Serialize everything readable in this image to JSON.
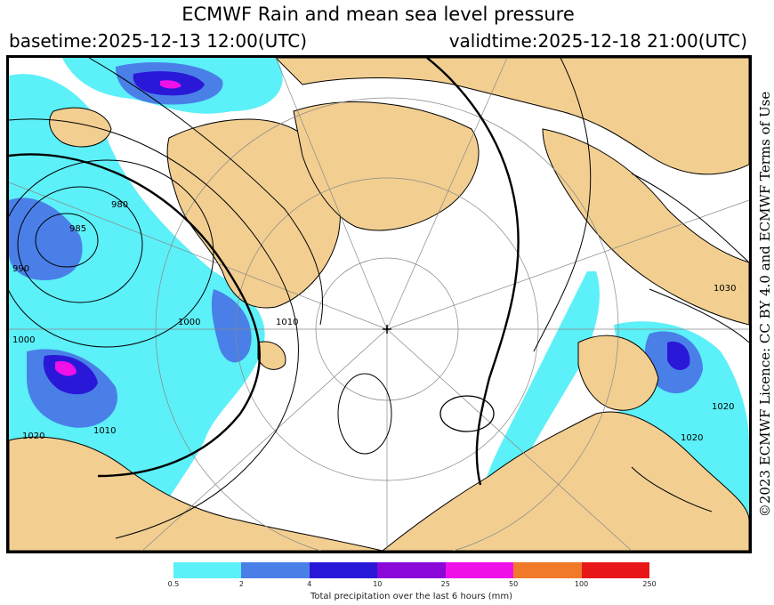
{
  "header": {
    "title": "ECMWF Rain and mean sea level pressure",
    "basetime": "basetime:2025-12-13 12:00(UTC)",
    "validtime": "validtime:2025-12-18 21:00(UTC)"
  },
  "licence": "©2023 ECMWF Licence: CC BY 4.0 and ECMWF Terms of Use",
  "map": {
    "projection": "polar-stereographic-north",
    "colors": {
      "land": "#f2cf91",
      "sea": "#ffffff",
      "isobar": "#000000",
      "graticule": "#888888"
    },
    "isobar_labels": [
      "980",
      "985",
      "990",
      "1000",
      "1000",
      "1010",
      "1010",
      "1020",
      "1020",
      "1020",
      "1030"
    ]
  },
  "legend": {
    "label": "Total precipitation over the last 6 hours (mm)",
    "ticks": [
      "0.5",
      "2",
      "4",
      "10",
      "25",
      "50",
      "100",
      "250"
    ],
    "colors": [
      "#5cf0f8",
      "#4a7fe8",
      "#2a18d8",
      "#8a08d8",
      "#f010e8",
      "#f07a28",
      "#e81818"
    ]
  }
}
